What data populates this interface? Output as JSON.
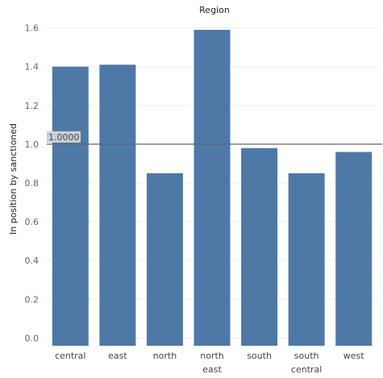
{
  "chart_data": {
    "type": "bar",
    "title": "Region",
    "ylabel": "In position by sanctioned",
    "xlabel": "",
    "categories": [
      [
        "central"
      ],
      [
        "east"
      ],
      [
        "north"
      ],
      [
        "north",
        "east"
      ],
      [
        "south"
      ],
      [
        "south",
        "central"
      ],
      [
        "west"
      ]
    ],
    "values": [
      1.4,
      1.41,
      0.85,
      1.59,
      0.98,
      0.85,
      0.96
    ],
    "ylim": [
      -0.04,
      1.64
    ],
    "yticks": [
      0.0,
      0.2,
      0.4,
      0.6,
      0.8,
      1.0,
      1.2,
      1.4,
      1.6
    ],
    "ytick_labels": [
      "0.0",
      "0.2",
      "0.4",
      "0.6",
      "0.8",
      "1.0",
      "1.2",
      "1.4",
      "1.6"
    ],
    "reference_line": {
      "value": 1.0,
      "label": "1.0000"
    },
    "grid": true,
    "colors": {
      "bar": "#4e79a7"
    }
  }
}
